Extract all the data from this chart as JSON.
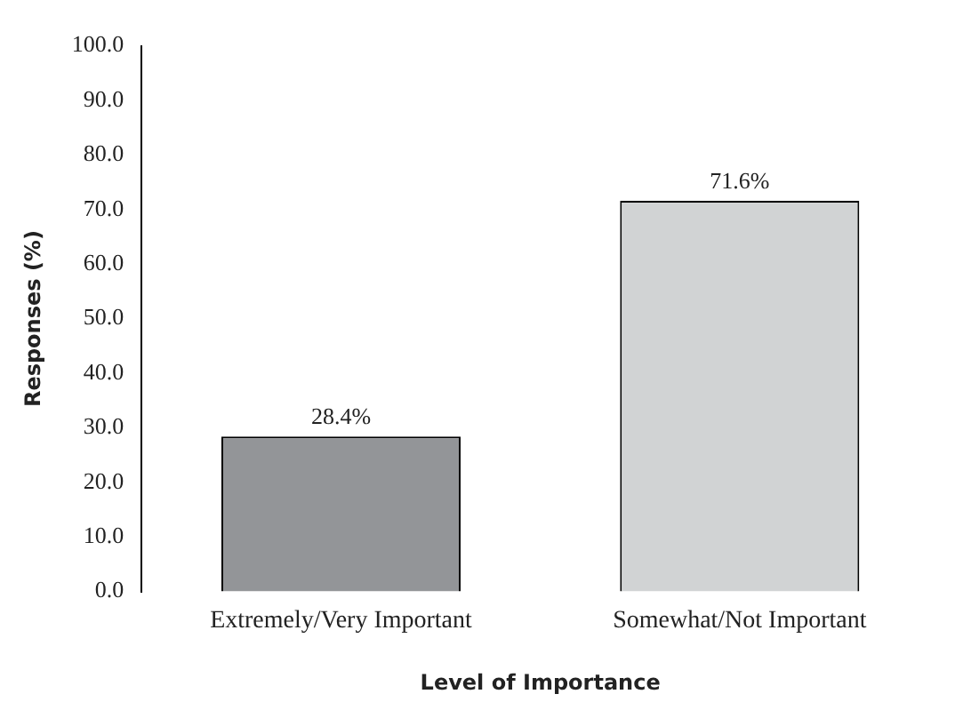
{
  "chart_data": {
    "type": "bar",
    "xlabel": "Level of Importance",
    "ylabel": "Responses (%)",
    "categories": [
      "Extremely/Very Important",
      "Somewhat/Not Important"
    ],
    "values": [
      28.4,
      71.6
    ],
    "value_labels": [
      "28.4%",
      "71.6%"
    ],
    "colors": [
      "#939598",
      "#d1d3d4"
    ],
    "ylim": [
      0,
      100
    ],
    "yticks": [
      {
        "value": 0,
        "label": "0.0"
      },
      {
        "value": 10,
        "label": "10.0"
      },
      {
        "value": 20,
        "label": "20.0"
      },
      {
        "value": 30,
        "label": "30.0"
      },
      {
        "value": 40,
        "label": "40.0"
      },
      {
        "value": 50,
        "label": "50.0"
      },
      {
        "value": 60,
        "label": "60.0"
      },
      {
        "value": 70,
        "label": "70.0"
      },
      {
        "value": 80,
        "label": "80.0"
      },
      {
        "value": 90,
        "label": "90.0"
      },
      {
        "value": 100,
        "label": "100.0"
      }
    ],
    "grid": false,
    "legend": false
  }
}
